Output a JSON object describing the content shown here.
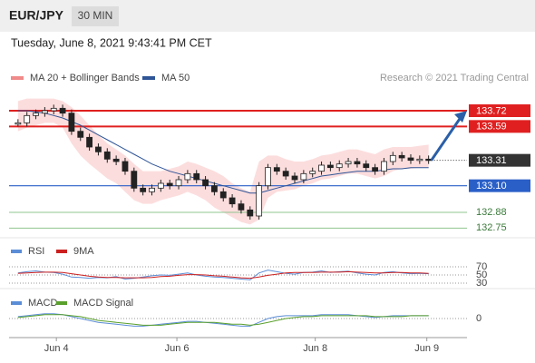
{
  "header": {
    "symbol": "EUR/JPY",
    "timeframe": "30 MIN",
    "timestamp": "Tuesday, June 8, 2021 9:43:41 PM CET"
  },
  "chart_data": [
    {
      "type": "price",
      "legend": [
        {
          "name": "MA 20 + Bollinger Bands",
          "color": "#f08a8a"
        },
        {
          "name": "MA 50",
          "color": "#2f5597"
        }
      ],
      "credit": "Research © 2021 Trading Central",
      "xlim": [
        -1,
        50.3
      ],
      "xticks": [
        {
          "value": 4.3,
          "label": "Jun 4"
        },
        {
          "value": 17.8,
          "label": "Jun 6"
        },
        {
          "value": 33.3,
          "label": "Jun 8"
        },
        {
          "value": 45.8,
          "label": "Jun 9"
        }
      ],
      "ylim": [
        132.67,
        134.11
      ],
      "price": {
        "color": "#333333",
        "values": [
          133.62,
          133.68,
          133.7,
          133.72,
          133.74,
          133.7,
          133.55,
          133.5,
          133.42,
          133.38,
          133.32,
          133.3,
          133.22,
          133.08,
          133.05,
          133.08,
          133.12,
          133.1,
          133.15,
          133.2,
          133.15,
          133.1,
          133.05,
          133.0,
          132.95,
          132.9,
          132.85,
          133.1,
          133.25,
          133.22,
          133.18,
          133.15,
          133.2,
          133.22,
          133.27,
          133.25,
          133.28,
          133.3,
          133.28,
          133.25,
          133.22,
          133.3,
          133.35,
          133.33,
          133.31,
          133.32,
          133.31
        ]
      },
      "band_upper": [
        133.8,
        133.82,
        133.82,
        133.82,
        133.82,
        133.8,
        133.75,
        133.68,
        133.6,
        133.52,
        133.45,
        133.4,
        133.35,
        133.28,
        133.22,
        133.22,
        133.22,
        133.24,
        133.26,
        133.3,
        133.28,
        133.25,
        133.22,
        133.18,
        133.12,
        133.08,
        133.05,
        133.3,
        133.35,
        133.35,
        133.32,
        133.3,
        133.3,
        133.32,
        133.35,
        133.36,
        133.38,
        133.4,
        133.4,
        133.38,
        133.36,
        133.4,
        133.42,
        133.42,
        133.42,
        133.43,
        133.44
      ],
      "band_lower": [
        133.55,
        133.58,
        133.6,
        133.62,
        133.62,
        133.58,
        133.45,
        133.35,
        133.28,
        133.22,
        133.16,
        133.12,
        133.05,
        132.98,
        132.95,
        132.95,
        132.98,
        133.0,
        133.02,
        133.05,
        133.02,
        132.98,
        132.92,
        132.88,
        132.84,
        132.8,
        132.78,
        132.82,
        133.0,
        133.05,
        133.06,
        133.07,
        133.1,
        133.12,
        133.15,
        133.16,
        133.18,
        133.2,
        133.2,
        133.18,
        133.16,
        133.18,
        133.22,
        133.24,
        133.24,
        133.25,
        133.25
      ],
      "ma50": [
        133.72,
        133.72,
        133.71,
        133.7,
        133.68,
        133.66,
        133.63,
        133.6,
        133.56,
        133.52,
        133.48,
        133.44,
        133.4,
        133.36,
        133.32,
        133.28,
        133.25,
        133.22,
        133.2,
        133.18,
        133.16,
        133.14,
        133.12,
        133.1,
        133.08,
        133.06,
        133.04,
        133.04,
        133.06,
        133.08,
        133.1,
        133.12,
        133.14,
        133.16,
        133.18,
        133.19,
        133.2,
        133.21,
        133.22,
        133.22,
        133.22,
        133.23,
        133.24,
        133.24,
        133.25,
        133.25,
        133.25
      ],
      "levels": [
        {
          "value": 133.72,
          "color": "#e02020",
          "style": "box"
        },
        {
          "value": 133.59,
          "color": "#e02020",
          "style": "box"
        },
        {
          "value": 133.31,
          "color": "#333333",
          "style": "dotted"
        },
        {
          "value": 133.1,
          "label": "133.10",
          "color": "#2a5fc8",
          "style": "box"
        },
        {
          "value": 132.88,
          "color": "#8fc48f",
          "style": "text"
        },
        {
          "value": 132.75,
          "color": "#8fc48f",
          "style": "text"
        }
      ]
    },
    {
      "type": "oscillator",
      "ylim": [
        20,
        100
      ],
      "yticks": [
        70,
        50,
        30
      ],
      "series": [
        {
          "name": "RSI",
          "color": "#5b8dd6",
          "values": [
            55,
            58,
            60,
            57,
            56,
            52,
            45,
            44,
            42,
            44,
            43,
            46,
            40,
            42,
            45,
            48,
            50,
            49,
            52,
            55,
            50,
            47,
            45,
            44,
            42,
            40,
            38,
            55,
            62,
            58,
            54,
            52,
            56,
            57,
            60,
            56,
            58,
            59,
            55,
            52,
            50,
            56,
            58,
            55,
            53,
            54,
            53
          ]
        },
        {
          "name": "9MA",
          "color": "#cc2020",
          "values": [
            54,
            55,
            56,
            57,
            57,
            56,
            53,
            50,
            47,
            45,
            44,
            44,
            43,
            43,
            43,
            44,
            46,
            47,
            49,
            51,
            51,
            50,
            48,
            47,
            45,
            43,
            42,
            45,
            49,
            52,
            55,
            56,
            56,
            56,
            57,
            57,
            57,
            58,
            57,
            56,
            55,
            55,
            56,
            56,
            55,
            55,
            54
          ]
        }
      ]
    },
    {
      "type": "oscillator",
      "ylim": [
        -0.2,
        0.2
      ],
      "yticks": [
        0
      ],
      "series": [
        {
          "name": "MACD",
          "color": "#5b8dd6",
          "values": [
            0.02,
            0.03,
            0.04,
            0.05,
            0.05,
            0.04,
            0.02,
            0.0,
            -0.02,
            -0.04,
            -0.05,
            -0.06,
            -0.07,
            -0.08,
            -0.08,
            -0.07,
            -0.06,
            -0.05,
            -0.04,
            -0.03,
            -0.03,
            -0.04,
            -0.05,
            -0.06,
            -0.07,
            -0.08,
            -0.08,
            -0.04,
            0.0,
            0.02,
            0.03,
            0.03,
            0.03,
            0.03,
            0.04,
            0.04,
            0.04,
            0.04,
            0.03,
            0.02,
            0.01,
            0.02,
            0.03,
            0.03,
            0.03,
            0.03,
            0.03
          ]
        },
        {
          "name": "MACD Signal",
          "color": "#5aa02c",
          "values": [
            0.01,
            0.02,
            0.03,
            0.04,
            0.04,
            0.04,
            0.03,
            0.02,
            0.0,
            -0.02,
            -0.03,
            -0.04,
            -0.05,
            -0.06,
            -0.07,
            -0.07,
            -0.07,
            -0.06,
            -0.05,
            -0.04,
            -0.04,
            -0.04,
            -0.04,
            -0.05,
            -0.06,
            -0.06,
            -0.07,
            -0.06,
            -0.04,
            -0.02,
            0.0,
            0.01,
            0.02,
            0.02,
            0.03,
            0.03,
            0.03,
            0.03,
            0.03,
            0.03,
            0.02,
            0.02,
            0.02,
            0.02,
            0.03,
            0.03,
            0.03
          ]
        }
      ]
    }
  ]
}
